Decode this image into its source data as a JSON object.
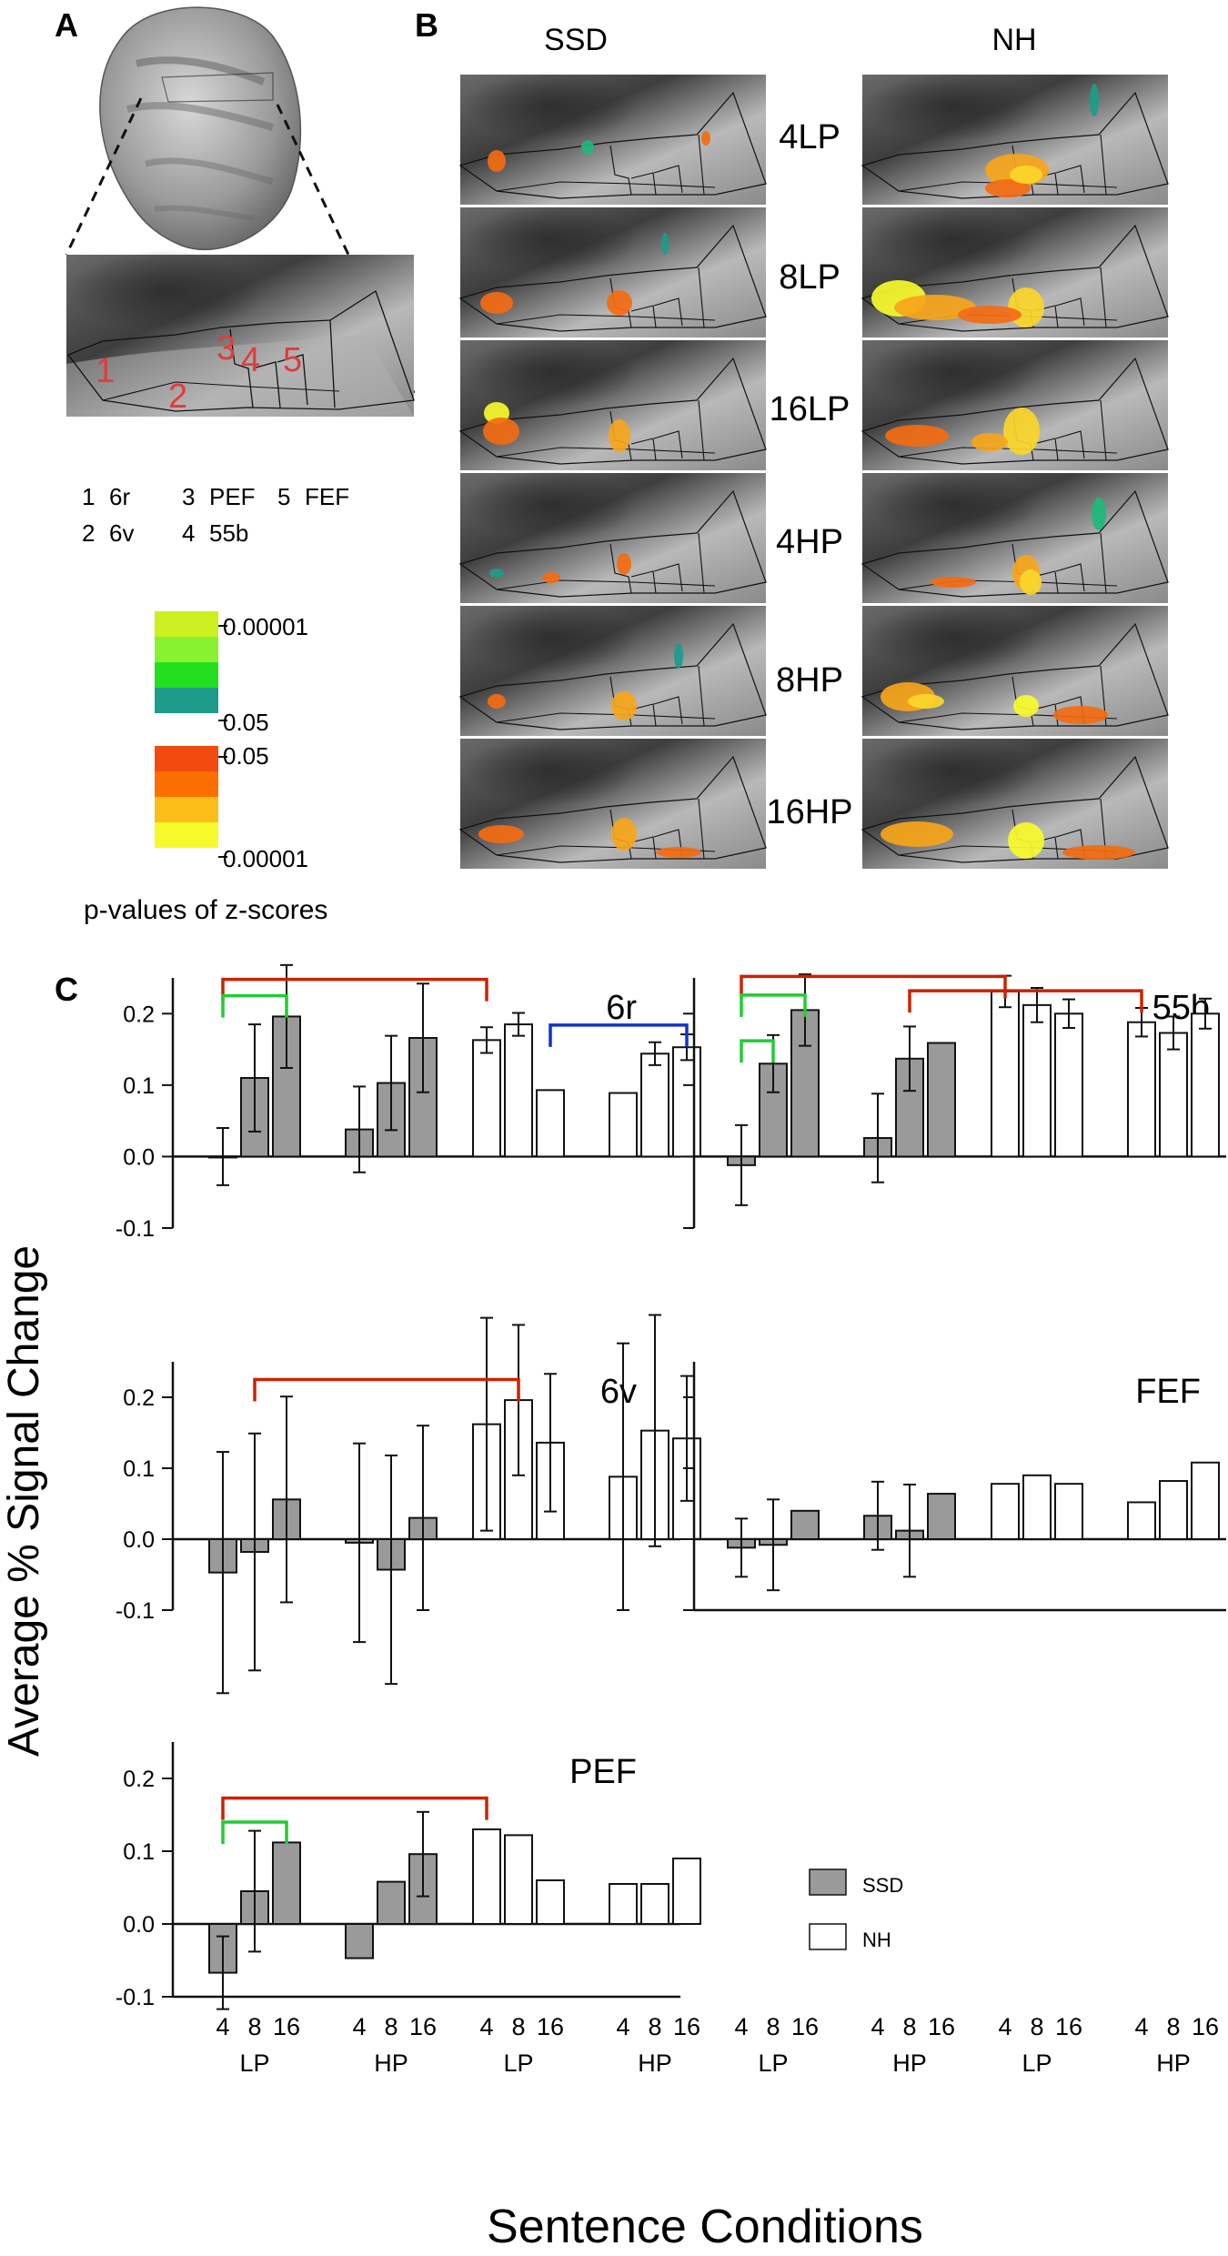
{
  "panel_labels": {
    "a": "A",
    "b": "B",
    "c": "C"
  },
  "panel_a": {
    "zoom_region_numbers": [
      "1",
      "2",
      "3",
      "4",
      "5"
    ],
    "region_legend": [
      {
        "num": "1",
        "name": "6r"
      },
      {
        "num": "2",
        "name": "6v"
      },
      {
        "num": "3",
        "name": "PEF"
      },
      {
        "num": "4",
        "name": "55b"
      },
      {
        "num": "5",
        "name": "FEF"
      }
    ],
    "colorbar": {
      "cool_colors": [
        "#ccf020",
        "#88f230",
        "#22e020",
        "#1d9b8b"
      ],
      "warm_colors": [
        "#f34a10",
        "#fb6f00",
        "#fcbd18",
        "#f7fa2a"
      ],
      "tick_labels": [
        "0.00001",
        "0.05",
        "0.05",
        "0.00001"
      ],
      "title": "p-values of z-scores"
    }
  },
  "panel_b": {
    "columns": [
      "SSD",
      "NH"
    ],
    "rows": [
      "4LP",
      "8LP",
      "16LP",
      "4HP",
      "8HP",
      "16HP"
    ]
  },
  "colors": {
    "ssd_bar": "#9a9a9a",
    "nh_bar": "#ffffff",
    "red_bracket": "#cc2200",
    "green_bracket": "#22cc33",
    "blue_bracket": "#1133cc"
  },
  "chart_data": {
    "type": "bar",
    "ylabel": "Average % Signal Change",
    "xlabel": "Sentence Conditions",
    "ylim": [
      -0.1,
      0.25
    ],
    "yticks": [
      "0.2",
      "0.1",
      "0.0",
      "-0.1"
    ],
    "ytick_values": [
      0.2,
      0.1,
      0.0,
      -0.1
    ],
    "x_numbers": [
      "4",
      "8",
      "16"
    ],
    "x_groups": [
      "LP",
      "HP",
      "LP",
      "HP"
    ],
    "legend": [
      {
        "label": "SSD",
        "fill": "#9a9a9a"
      },
      {
        "label": "NH",
        "fill": "#ffffff"
      }
    ],
    "panels": [
      {
        "region": "6r",
        "SSD": {
          "values": [
            0.0,
            0.11,
            0.196,
            0.038,
            0.103,
            0.166
          ],
          "errors": [
            0.04,
            0.075,
            0.072,
            0.06,
            0.066,
            0.076
          ]
        },
        "NH": {
          "values": [
            0.163,
            0.185,
            0.093,
            0.089,
            0.144,
            0.153
          ],
          "errors": [
            0.018,
            0.016,
            0.001,
            0.001,
            0.016,
            0.018
          ]
        },
        "brackets": [
          {
            "from": 0,
            "to": 6,
            "level": 0.248,
            "color": "red"
          },
          {
            "from": 0,
            "to": 2,
            "level": 0.225,
            "color": "green"
          },
          {
            "from": 8,
            "to": 11,
            "level": 0.184,
            "color": "blue"
          }
        ]
      },
      {
        "region": "55b",
        "SSD": {
          "values": [
            -0.012,
            0.13,
            0.205,
            0.026,
            0.137,
            0.159
          ],
          "errors": [
            0.056,
            0.04,
            0.05,
            0.062,
            0.045,
            0.001
          ]
        },
        "NH": {
          "values": [
            0.231,
            0.212,
            0.2,
            0.188,
            0.173,
            0.2
          ],
          "errors": [
            0.022,
            0.024,
            0.02,
            0.02,
            0.023,
            0.021
          ]
        },
        "brackets": [
          {
            "from": 0,
            "to": 6,
            "level": 0.252,
            "color": "red"
          },
          {
            "from": 0,
            "to": 2,
            "level": 0.226,
            "color": "green"
          },
          {
            "from": 4,
            "to": 9,
            "level": 0.232,
            "color": "red"
          },
          {
            "from": 0,
            "to": 1,
            "level": 0.162,
            "color": "green"
          }
        ]
      },
      {
        "region": "6v",
        "SSD": {
          "values": [
            -0.047,
            -0.018,
            0.056,
            -0.005,
            -0.043,
            0.03
          ],
          "errors": [
            0.17,
            0.167,
            0.145,
            0.14,
            0.161,
            0.13
          ]
        },
        "NH": {
          "values": [
            0.162,
            0.196,
            0.136,
            0.088,
            0.153,
            0.142
          ],
          "errors": [
            0.15,
            0.106,
            0.097,
            0.188,
            0.163,
            0.088
          ]
        },
        "brackets": [
          {
            "from": 1,
            "to": 7,
            "level": 0.225,
            "color": "red"
          }
        ]
      },
      {
        "region": "FEF",
        "SSD": {
          "values": [
            -0.012,
            -0.008,
            0.04,
            0.033,
            0.012,
            0.064
          ],
          "errors": [
            0.041,
            0.064,
            0.001,
            0.048,
            0.065,
            0.001
          ]
        },
        "NH": {
          "values": [
            0.078,
            0.09,
            0.078,
            0.052,
            0.082,
            0.108
          ],
          "errors": [
            0.001,
            0.001,
            0.001,
            0.001,
            0.001,
            0.001
          ]
        },
        "brackets": []
      },
      {
        "region": "PEF",
        "SSD": {
          "values": [
            -0.067,
            0.045,
            0.112,
            -0.047,
            0.058,
            0.096
          ],
          "errors": [
            0.05,
            0.083,
            0.001,
            0.001,
            0.001,
            0.058
          ]
        },
        "NH": {
          "values": [
            0.13,
            0.122,
            0.06,
            0.055,
            0.055,
            0.09
          ],
          "errors": [
            0.001,
            0.001,
            0.001,
            0.001,
            0.001,
            0.001
          ]
        },
        "brackets": [
          {
            "from": 0,
            "to": 6,
            "level": 0.173,
            "color": "red"
          },
          {
            "from": 0,
            "to": 2,
            "level": 0.14,
            "color": "green"
          }
        ]
      }
    ]
  }
}
